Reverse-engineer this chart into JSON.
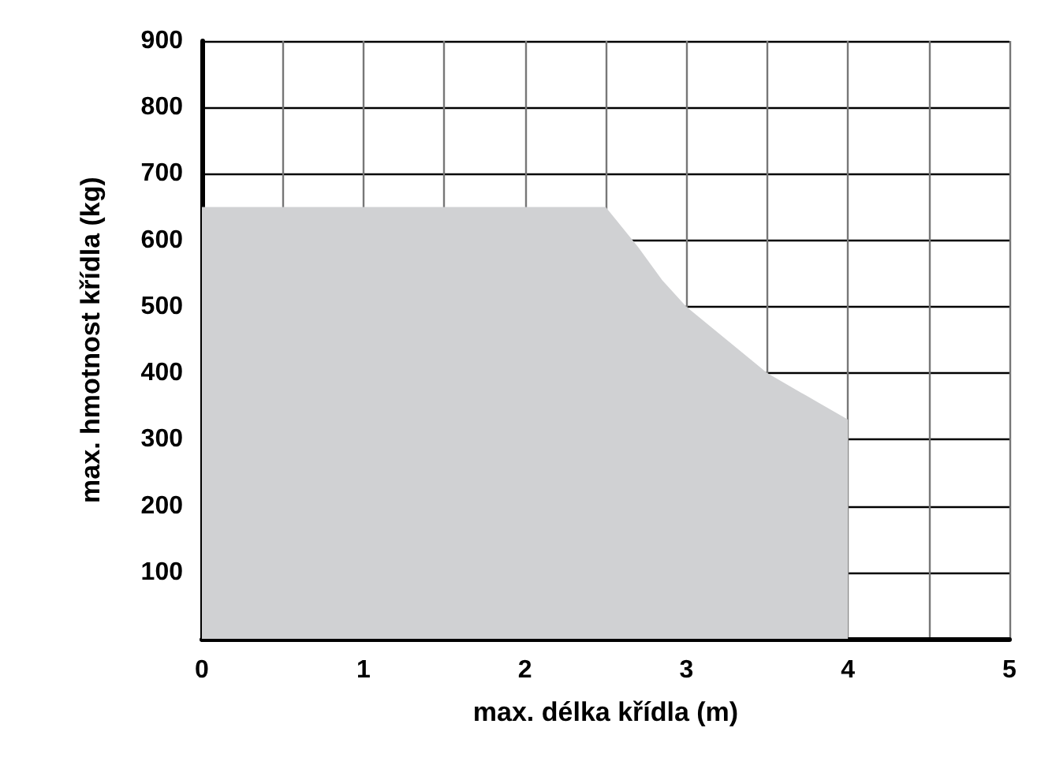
{
  "chart_data": {
    "type": "area",
    "xlabel": "max. délka křídla (m)",
    "ylabel": "max. hmotnost křídla (kg)",
    "x": [
      0,
      2.5,
      2.7,
      2.85,
      3,
      3.25,
      3.5,
      3.75,
      4,
      4
    ],
    "values": [
      650,
      650,
      590,
      540,
      500,
      450,
      400,
      365,
      330,
      0
    ],
    "color": "#d0d1d3",
    "xlim": [
      0,
      5
    ],
    "xticks": [
      0,
      {
        "value": 0.5,
        "label": null
      },
      1,
      {
        "value": 1.5,
        "label": null
      },
      2,
      {
        "value": 2.5,
        "label": null
      },
      3,
      {
        "value": 3.5,
        "label": null
      },
      4,
      {
        "value": 4.5,
        "label": null
      },
      5
    ],
    "ylim": [
      0,
      900
    ],
    "yticks": [
      {
        "value": 0,
        "label": null
      },
      100,
      200,
      300,
      400,
      500,
      600,
      700,
      800,
      900
    ],
    "grid": true
  }
}
